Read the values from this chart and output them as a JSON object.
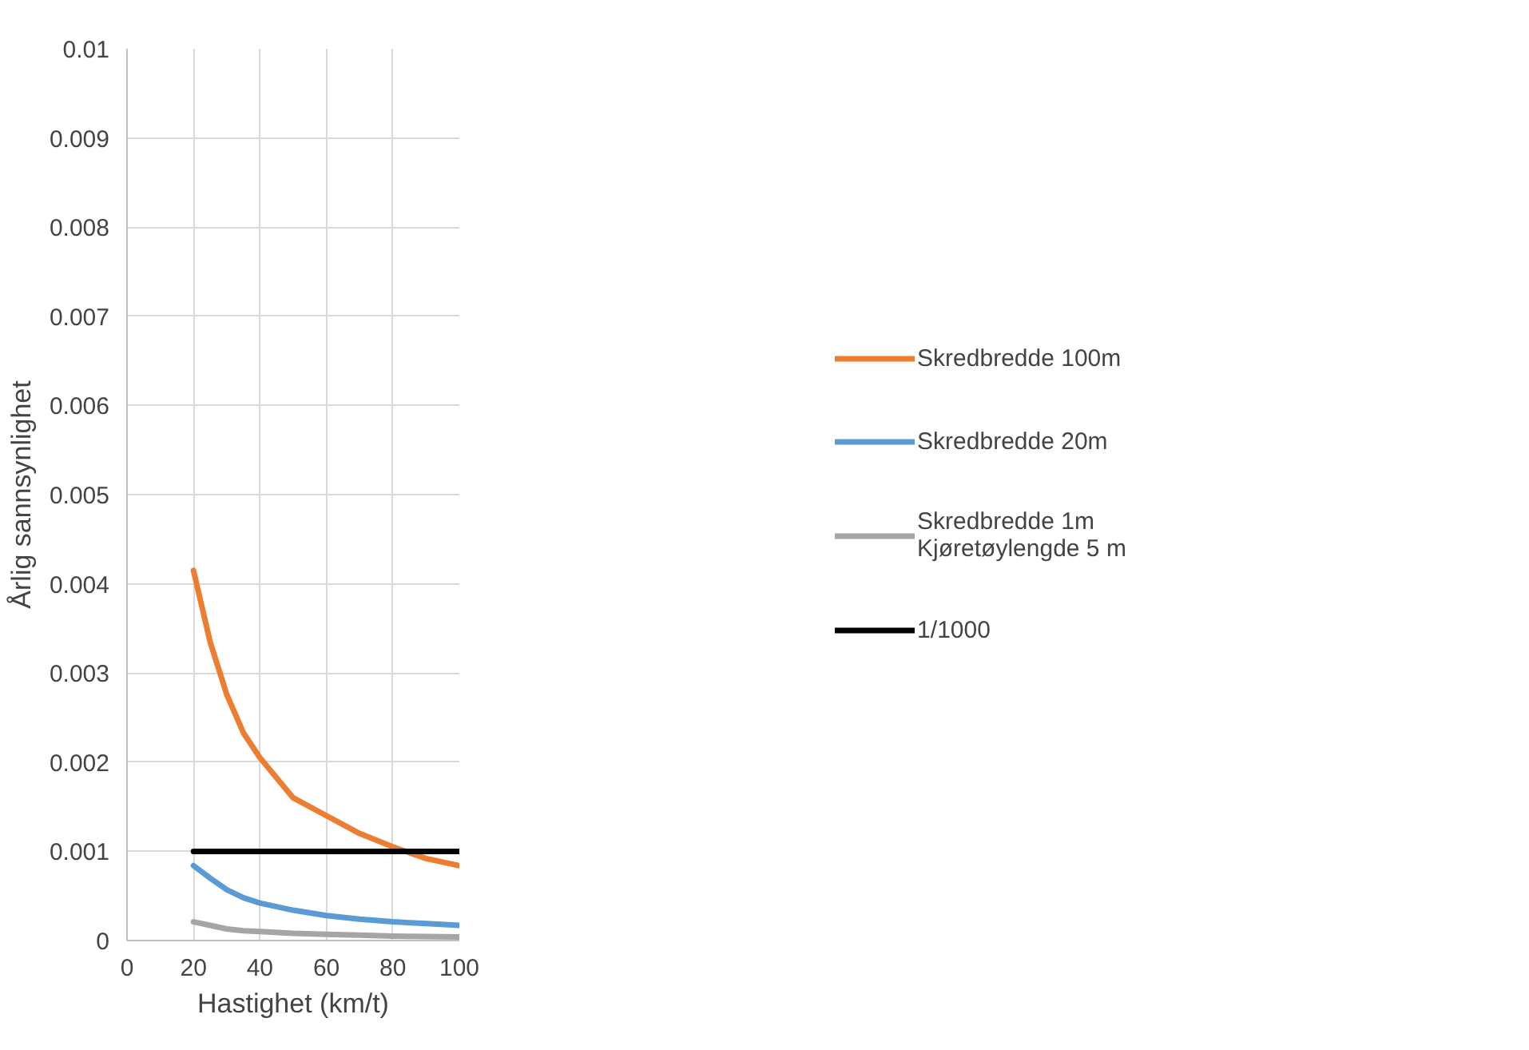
{
  "chart_data": {
    "type": "line",
    "xlabel": "Hastighet (km/t)",
    "ylabel": "Årlig sannsynlighet",
    "x": [
      20,
      25,
      30,
      35,
      40,
      50,
      60,
      70,
      80,
      90,
      100
    ],
    "xlim": [
      0,
      100
    ],
    "xticks": [
      0,
      20,
      40,
      60,
      80,
      100
    ],
    "ylim": [
      0,
      0.01
    ],
    "yticks": [
      0,
      0.001,
      0.002,
      0.003,
      0.004,
      0.005,
      0.006,
      0.007,
      0.008,
      0.009,
      0.01
    ],
    "grid": true,
    "legend": "right",
    "marker": "none",
    "line_style": "solid",
    "series": [
      {
        "name": "Skredbredde 100m",
        "color": "#ed7d31",
        "values": [
          0.00415,
          0.00335,
          0.00276,
          0.00233,
          0.00205,
          0.0016,
          0.0014,
          0.0012,
          0.00105,
          0.00092,
          0.00084
        ]
      },
      {
        "name": "Skredbredde 20m",
        "color": "#5b9bd5",
        "values": [
          0.00084,
          0.0007,
          0.00057,
          0.00048,
          0.00042,
          0.00034,
          0.00028,
          0.00024,
          0.00021,
          0.00019,
          0.00017
        ]
      },
      {
        "name": "Skredbredde 1m\nKjøretøylengde 5 m",
        "color": "#a5a5a5",
        "values": [
          0.00021,
          0.00017,
          0.00013,
          0.00011,
          0.0001,
          8e-05,
          7e-05,
          6e-05,
          5e-05,
          4.5e-05,
          4e-05
        ]
      },
      {
        "name": "1/1000",
        "color": "#000000",
        "values": [
          0.001,
          0.001,
          0.001,
          0.001,
          0.001,
          0.001,
          0.001,
          0.001,
          0.001,
          0.001,
          0.001
        ]
      }
    ]
  }
}
